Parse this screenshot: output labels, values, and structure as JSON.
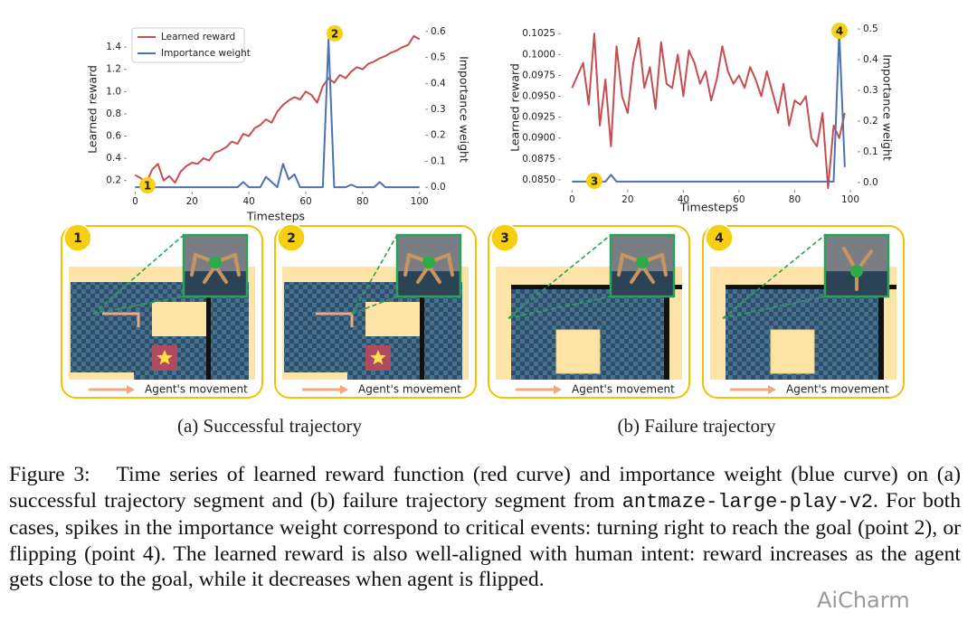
{
  "chart_data": [
    {
      "type": "line",
      "x": [
        0,
        2,
        4,
        6,
        8,
        10,
        12,
        14,
        16,
        18,
        20,
        22,
        24,
        26,
        28,
        30,
        32,
        34,
        36,
        38,
        40,
        42,
        44,
        46,
        48,
        50,
        52,
        54,
        56,
        58,
        60,
        62,
        64,
        66,
        68,
        70,
        72,
        74,
        76,
        78,
        80,
        82,
        84,
        86,
        88,
        90,
        92,
        94,
        96,
        98,
        100
      ],
      "series": [
        {
          "name": "Learned reward",
          "color": "#c44e52",
          "values": [
            0.25,
            0.22,
            0.18,
            0.3,
            0.35,
            0.2,
            0.24,
            0.18,
            0.28,
            0.33,
            0.36,
            0.35,
            0.4,
            0.38,
            0.45,
            0.47,
            0.5,
            0.55,
            0.53,
            0.62,
            0.6,
            0.67,
            0.7,
            0.75,
            0.72,
            0.82,
            0.88,
            0.92,
            0.95,
            0.93,
            1.0,
            0.97,
            0.9,
            1.05,
            1.12,
            1.08,
            1.15,
            1.12,
            1.18,
            1.22,
            1.2,
            1.25,
            1.27,
            1.3,
            1.32,
            1.35,
            1.37,
            1.4,
            1.42,
            1.5,
            1.47
          ]
        },
        {
          "name": "Importance weight",
          "color": "#4c72b0",
          "axis": "y2",
          "values": [
            0,
            0,
            0,
            0,
            0,
            0,
            0,
            0,
            0,
            0,
            0,
            0,
            0,
            0,
            0,
            0,
            0,
            0,
            0,
            0.02,
            0,
            0,
            0,
            0.04,
            0.02,
            0,
            0.09,
            0.03,
            0.05,
            0,
            0,
            0,
            0,
            0,
            0.57,
            0,
            0,
            0,
            0.01,
            0,
            0,
            0,
            0,
            0.02,
            0,
            0,
            0,
            0,
            0,
            0,
            0
          ]
        }
      ],
      "xlim": [
        -3,
        102
      ],
      "xticks": [
        0,
        20,
        40,
        60,
        80,
        100
      ],
      "ylim": [
        0.1,
        1.58
      ],
      "yticks": [
        0.2,
        0.4,
        0.6,
        0.8,
        {
          "value": 1,
          "label": "1.0"
        },
        1.2,
        1.4
      ],
      "y2lim": [
        -0.017,
        0.617
      ],
      "y2ticks": [
        {
          "value": 0,
          "label": "0.0"
        },
        0.1,
        0.2,
        0.3,
        0.4,
        0.5,
        0.6
      ],
      "x_label": "Timesteps",
      "y_label": "Learned reward",
      "y2_label": "Importance weight",
      "legend": "upper left",
      "annotations": [
        "1",
        "2"
      ]
    },
    {
      "type": "line",
      "x": [
        0,
        2,
        4,
        6,
        8,
        10,
        12,
        14,
        16,
        18,
        20,
        22,
        24,
        26,
        28,
        30,
        32,
        34,
        36,
        38,
        40,
        42,
        44,
        46,
        48,
        50,
        52,
        54,
        56,
        58,
        60,
        62,
        64,
        66,
        68,
        70,
        72,
        74,
        76,
        78,
        80,
        82,
        84,
        86,
        88,
        90,
        92,
        94,
        96,
        98
      ],
      "series": [
        {
          "color": "#c44e52",
          "values": [
            0.096,
            0.0975,
            0.099,
            0.094,
            0.1025,
            0.0915,
            0.097,
            0.089,
            0.101,
            0.095,
            0.093,
            0.099,
            0.102,
            0.096,
            0.0985,
            0.0935,
            0.1015,
            0.0965,
            0.096,
            0.1,
            0.095,
            0.1005,
            0.099,
            0.0965,
            0.098,
            0.0945,
            0.097,
            0.101,
            0.098,
            0.0965,
            0.0975,
            0.096,
            0.0985,
            0.097,
            0.095,
            0.098,
            0.0955,
            0.093,
            0.0965,
            0.0915,
            0.0945,
            0.094,
            0.095,
            0.09,
            0.089,
            0.093,
            0.084,
            0.0915,
            0.09,
            0.093
          ]
        },
        {
          "color": "#4c72b0",
          "axis": "y2",
          "values": [
            0.003,
            0.003,
            0.003,
            0.003,
            0.003,
            0.003,
            0.003,
            0.025,
            0.003,
            0.003,
            0.003,
            0.003,
            0.003,
            0.003,
            0.003,
            0.003,
            0.003,
            0.003,
            0.003,
            0.003,
            0.003,
            0.003,
            0.003,
            0.003,
            0.003,
            0.003,
            0.003,
            0.003,
            0.003,
            0.003,
            0.003,
            0.003,
            0.003,
            0.003,
            0.003,
            0.003,
            0.003,
            0.003,
            0.003,
            0.003,
            0.003,
            0.003,
            0.003,
            0.003,
            0.003,
            0.003,
            0.003,
            0.003,
            0.49,
            0.05
          ]
        }
      ],
      "xlim": [
        -4,
        102.6
      ],
      "xticks": [
        0,
        20,
        40,
        60,
        80,
        100
      ],
      "ylim": [
        0.0838,
        0.1035
      ],
      "yticks": [
        {
          "value": 0.085,
          "label": "0.0850"
        },
        {
          "value": 0.0875,
          "label": "0.0875"
        },
        {
          "value": 0.09,
          "label": "0.0900"
        },
        {
          "value": 0.0925,
          "label": "0.0925"
        },
        {
          "value": 0.095,
          "label": "0.0950"
        },
        {
          "value": 0.0975,
          "label": "0.0975"
        },
        {
          "value": 0.1,
          "label": "0.1000"
        },
        {
          "value": 0.1025,
          "label": "0.1025"
        }
      ],
      "y2lim": [
        -0.024,
        0.512
      ],
      "y2ticks": [
        {
          "value": 0,
          "label": "0.0"
        },
        0.1,
        0.2,
        0.3,
        0.4,
        0.5
      ],
      "x_label": "Timesteps",
      "y_label": "Learned reward",
      "y2_label": "Importance weight",
      "annotations": [
        "3",
        "4"
      ]
    }
  ],
  "panels": [
    {
      "badge": "1",
      "movement": "Agent's movement"
    },
    {
      "badge": "2",
      "movement": "Agent's movement"
    },
    {
      "badge": "3",
      "movement": "Agent's movement"
    },
    {
      "badge": "4",
      "movement": "Agent's movement"
    }
  ],
  "subcaptions": [
    "(a) Successful trajectory",
    "(b) Failure trajectory"
  ],
  "caption": {
    "label": "Figure 3:",
    "text_before": "Time series of learned reward function (red curve) and importance weight (blue curve) on (a) successful trajectory segment and (b) failure trajectory segment from",
    "code": "antmaze-large-play-v2",
    "text_after": ". For both cases, spikes in the importance weight correspond to critical events: turning right to reach the goal (point 2), or flipping (point 4). The learned reward is also well-aligned with human intent: reward increases as the agent gets close to the goal, while it decreases when agent is flipped."
  },
  "watermark": "AiCharm"
}
